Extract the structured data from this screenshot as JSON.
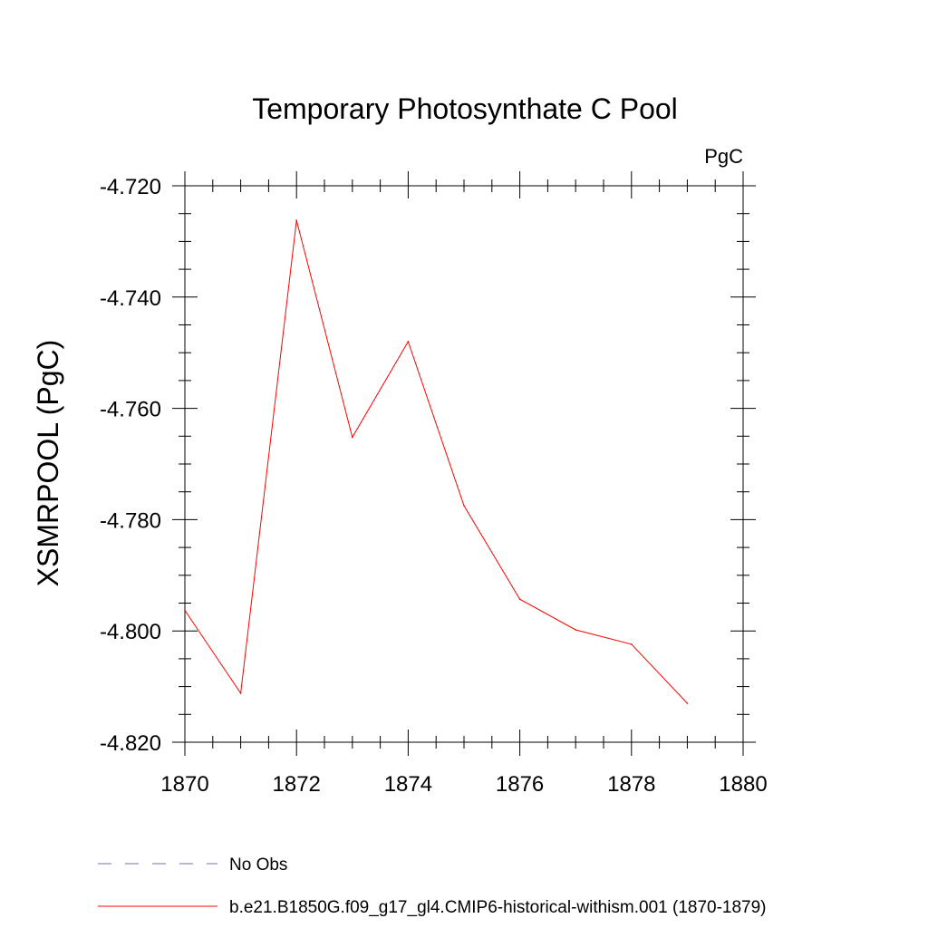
{
  "chart_data": {
    "type": "line",
    "title": "Temporary Photosynthate C Pool",
    "units_label": "PgC",
    "ylabel": "XSMRPOOL  (PgC)",
    "xlabel": "",
    "xlim": [
      1870,
      1880
    ],
    "ylim": [
      -4.82,
      -4.72
    ],
    "x_ticks": [
      1870,
      1872,
      1874,
      1876,
      1878,
      1880
    ],
    "x_tick_labels": [
      "1870",
      "1872",
      "1874",
      "1876",
      "1878",
      "1880"
    ],
    "y_ticks": [
      -4.72,
      -4.74,
      -4.76,
      -4.78,
      -4.8,
      -4.82
    ],
    "y_tick_labels": [
      "-4.720",
      "-4.740",
      "-4.760",
      "-4.780",
      "-4.800",
      "-4.820"
    ],
    "grid": false,
    "legend_placement": "bottom",
    "series": [
      {
        "name": "b.e21.B1850G.f09_g17_gl4.CMIP6-historical-withism.001 (1870-1879)",
        "color": "#ff0000",
        "dash": "solid",
        "x": [
          1870,
          1871,
          1872,
          1873,
          1874,
          1875,
          1876,
          1877,
          1878,
          1879
        ],
        "y": [
          -4.7963,
          -4.8112,
          -4.7262,
          -4.7652,
          -4.748,
          -4.7775,
          -4.7943,
          -4.7998,
          -4.8024,
          -4.813
        ]
      }
    ],
    "legend": [
      {
        "label": "No Obs",
        "color": "#7b68b8",
        "dash": "dashed"
      },
      {
        "label": "b.e21.B1850G.f09_g17_gl4.CMIP6-historical-withism.001 (1870-1879)",
        "color": "#ff0000",
        "dash": "solid"
      }
    ]
  }
}
